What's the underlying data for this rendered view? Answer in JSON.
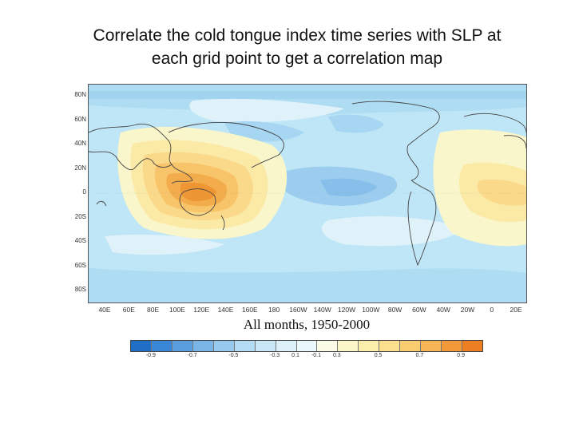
{
  "slide": {
    "title_line1": "Correlate the cold tongue index time series with SLP at",
    "title_line2": "each grid point to get a correlation map"
  },
  "map": {
    "caption": "All months, 1950-2000",
    "lat_labels": [
      "80N",
      "60N",
      "40N",
      "20N",
      "0",
      "20S",
      "40S",
      "60S",
      "80S"
    ],
    "lon_labels": [
      "40E",
      "60E",
      "80E",
      "100E",
      "120E",
      "140E",
      "160E",
      "180",
      "160W",
      "140W",
      "120W",
      "100W",
      "80W",
      "60W",
      "40W",
      "20W",
      "0",
      "20E"
    ]
  },
  "colorbar": {
    "labels": [
      "-0.9",
      "-0.7",
      "-0.5",
      "-0.3",
      "-0.1",
      "0.1",
      "0.3",
      "0.5",
      "0.7",
      "0.9"
    ],
    "colors": [
      "#1f6fc7",
      "#3a86d6",
      "#5a9ddd",
      "#7ab4e6",
      "#97c8ee",
      "#b3dbf4",
      "#c8e7f6",
      "#dcf1f9",
      "#eaf8fb",
      "#fafbe6",
      "#fbf6c8",
      "#fbedaa",
      "#fbdf8e",
      "#f9cc70",
      "#f6b455",
      "#f29a3a",
      "#ee7e22"
    ]
  }
}
